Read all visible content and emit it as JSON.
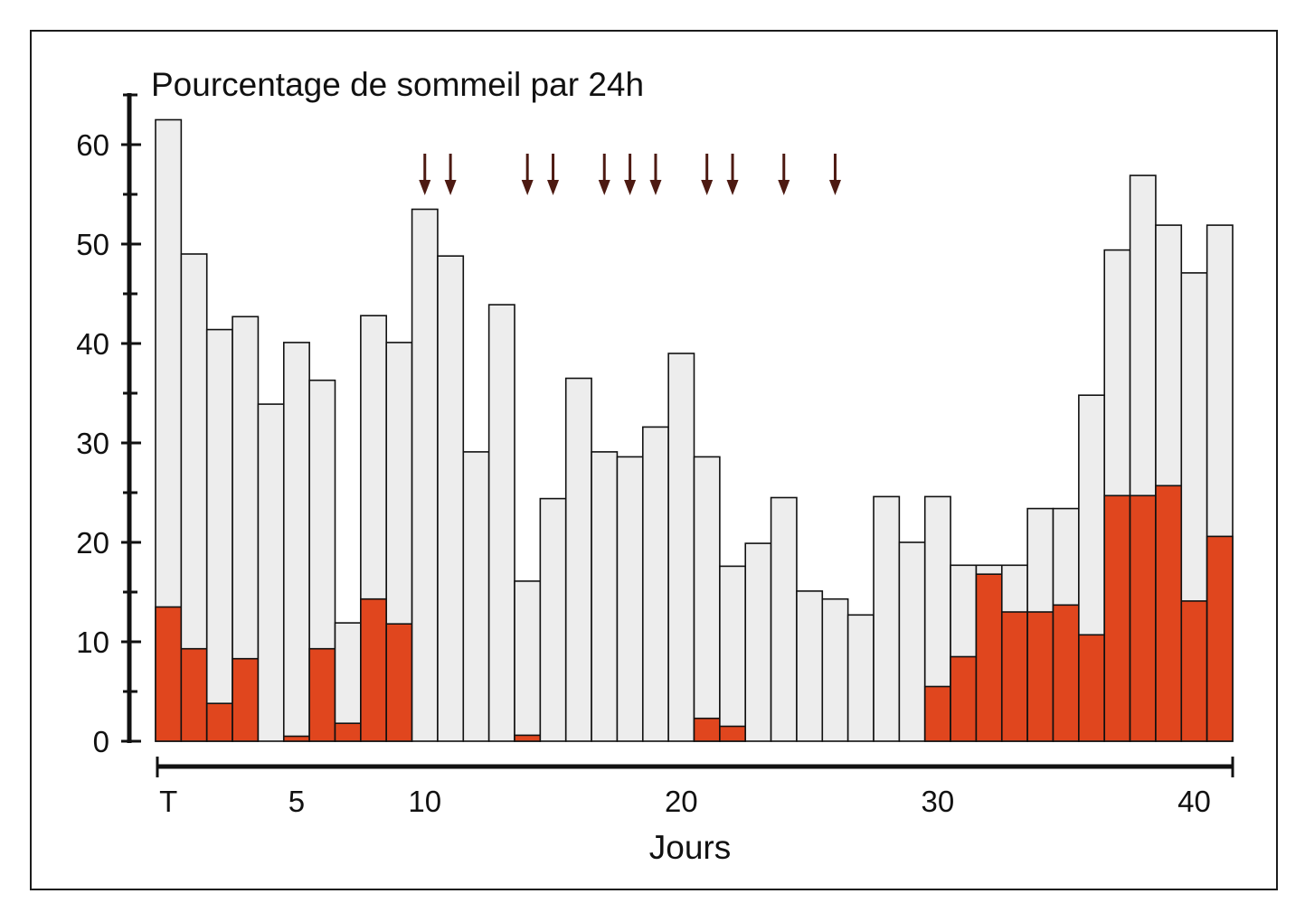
{
  "chart_data": {
    "type": "bar",
    "overlay": true,
    "title": "Pourcentage de sommeil par 24h",
    "xlabel": "Jours",
    "x": [
      0,
      1,
      2,
      3,
      4,
      5,
      6,
      7,
      8,
      9,
      10,
      11,
      12,
      13,
      14,
      15,
      16,
      17,
      18,
      19,
      20,
      21,
      22,
      23,
      24,
      25,
      26,
      27,
      28,
      29,
      30,
      31,
      32,
      33,
      34,
      35,
      36,
      37,
      38,
      39,
      40,
      41
    ],
    "xlim": [
      -0.5,
      41.5
    ],
    "xticks": [
      0,
      5,
      10,
      20,
      30,
      40
    ],
    "xtick_labels": [
      "T",
      "5",
      "10",
      "20",
      "30",
      "40"
    ],
    "ylim": [
      0,
      65
    ],
    "yticks": [
      0,
      10,
      20,
      30,
      40,
      50,
      60
    ],
    "yticks_minor": [
      5,
      15,
      25,
      35,
      45,
      55,
      65
    ],
    "grid": false,
    "series": [
      {
        "values": [
          62.5,
          49.0,
          41.4,
          42.7,
          33.9,
          40.1,
          36.3,
          11.9,
          42.8,
          40.1,
          53.5,
          48.8,
          29.1,
          43.9,
          16.1,
          24.4,
          36.5,
          29.1,
          28.6,
          31.6,
          39.0,
          28.6,
          17.6,
          19.9,
          24.5,
          15.1,
          14.3,
          12.7,
          24.6,
          20.0,
          24.6,
          17.7,
          17.7,
          17.7,
          23.4,
          23.4,
          34.8,
          49.4,
          56.9,
          51.9,
          47.1,
          51.9
        ],
        "color": "#ededed"
      },
      {
        "values": [
          13.5,
          9.3,
          3.8,
          8.3,
          0,
          0.5,
          9.3,
          1.8,
          14.3,
          11.8,
          0,
          0,
          0,
          0,
          0.6,
          0,
          0,
          0,
          0,
          0,
          0,
          2.3,
          1.5,
          0,
          0,
          0,
          0,
          0,
          0,
          0,
          5.5,
          8.5,
          16.8,
          13.0,
          13.0,
          13.7,
          10.7,
          24.7,
          24.7,
          25.7,
          14.1,
          20.6
        ],
        "color": "#e0461e"
      }
    ],
    "arrows": {
      "x": [
        10,
        11,
        14,
        15,
        17,
        18,
        19,
        21,
        22,
        24,
        26
      ],
      "color": "#4d1a12"
    }
  }
}
